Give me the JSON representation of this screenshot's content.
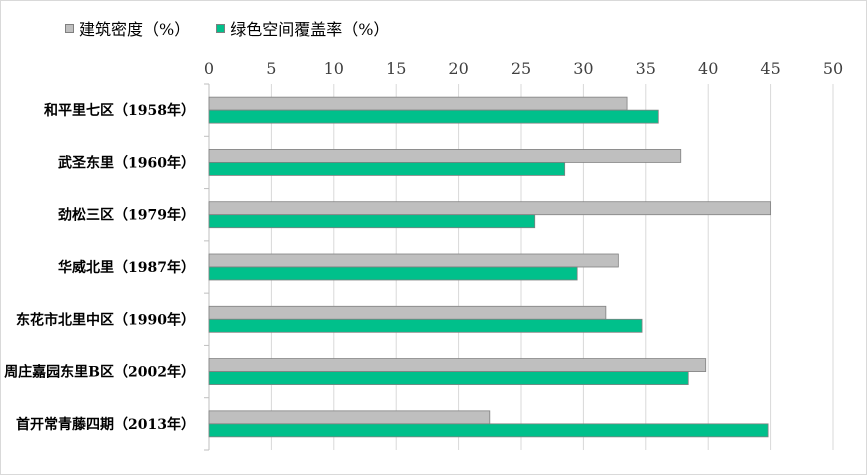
{
  "chart_data": {
    "type": "bar",
    "orientation": "horizontal",
    "categories": [
      "和平里七区（1958年）",
      "武圣东里（1960年）",
      "劲松三区（1979年）",
      "华威北里（1987年）",
      "东花市北里中区（1990年）",
      "周庄嘉园东里B区（2002年）",
      "首开常青藤四期（2013年）"
    ],
    "series": [
      {
        "name": "建筑密度（%）",
        "color": "#bfbfbf",
        "values": [
          33.5,
          37.8,
          45.0,
          32.8,
          31.8,
          39.8,
          22.5
        ]
      },
      {
        "name": "绿色空间覆盖率（%）",
        "color": "#00c08b",
        "values": [
          36.0,
          28.5,
          26.1,
          29.5,
          34.7,
          38.4,
          44.8
        ]
      }
    ],
    "xlim": [
      0,
      50
    ],
    "xticks": [
      0,
      5,
      10,
      15,
      20,
      25,
      30,
      35,
      40,
      45,
      50
    ],
    "x_axis_position": "top",
    "grid": true,
    "legend": "top-left"
  }
}
